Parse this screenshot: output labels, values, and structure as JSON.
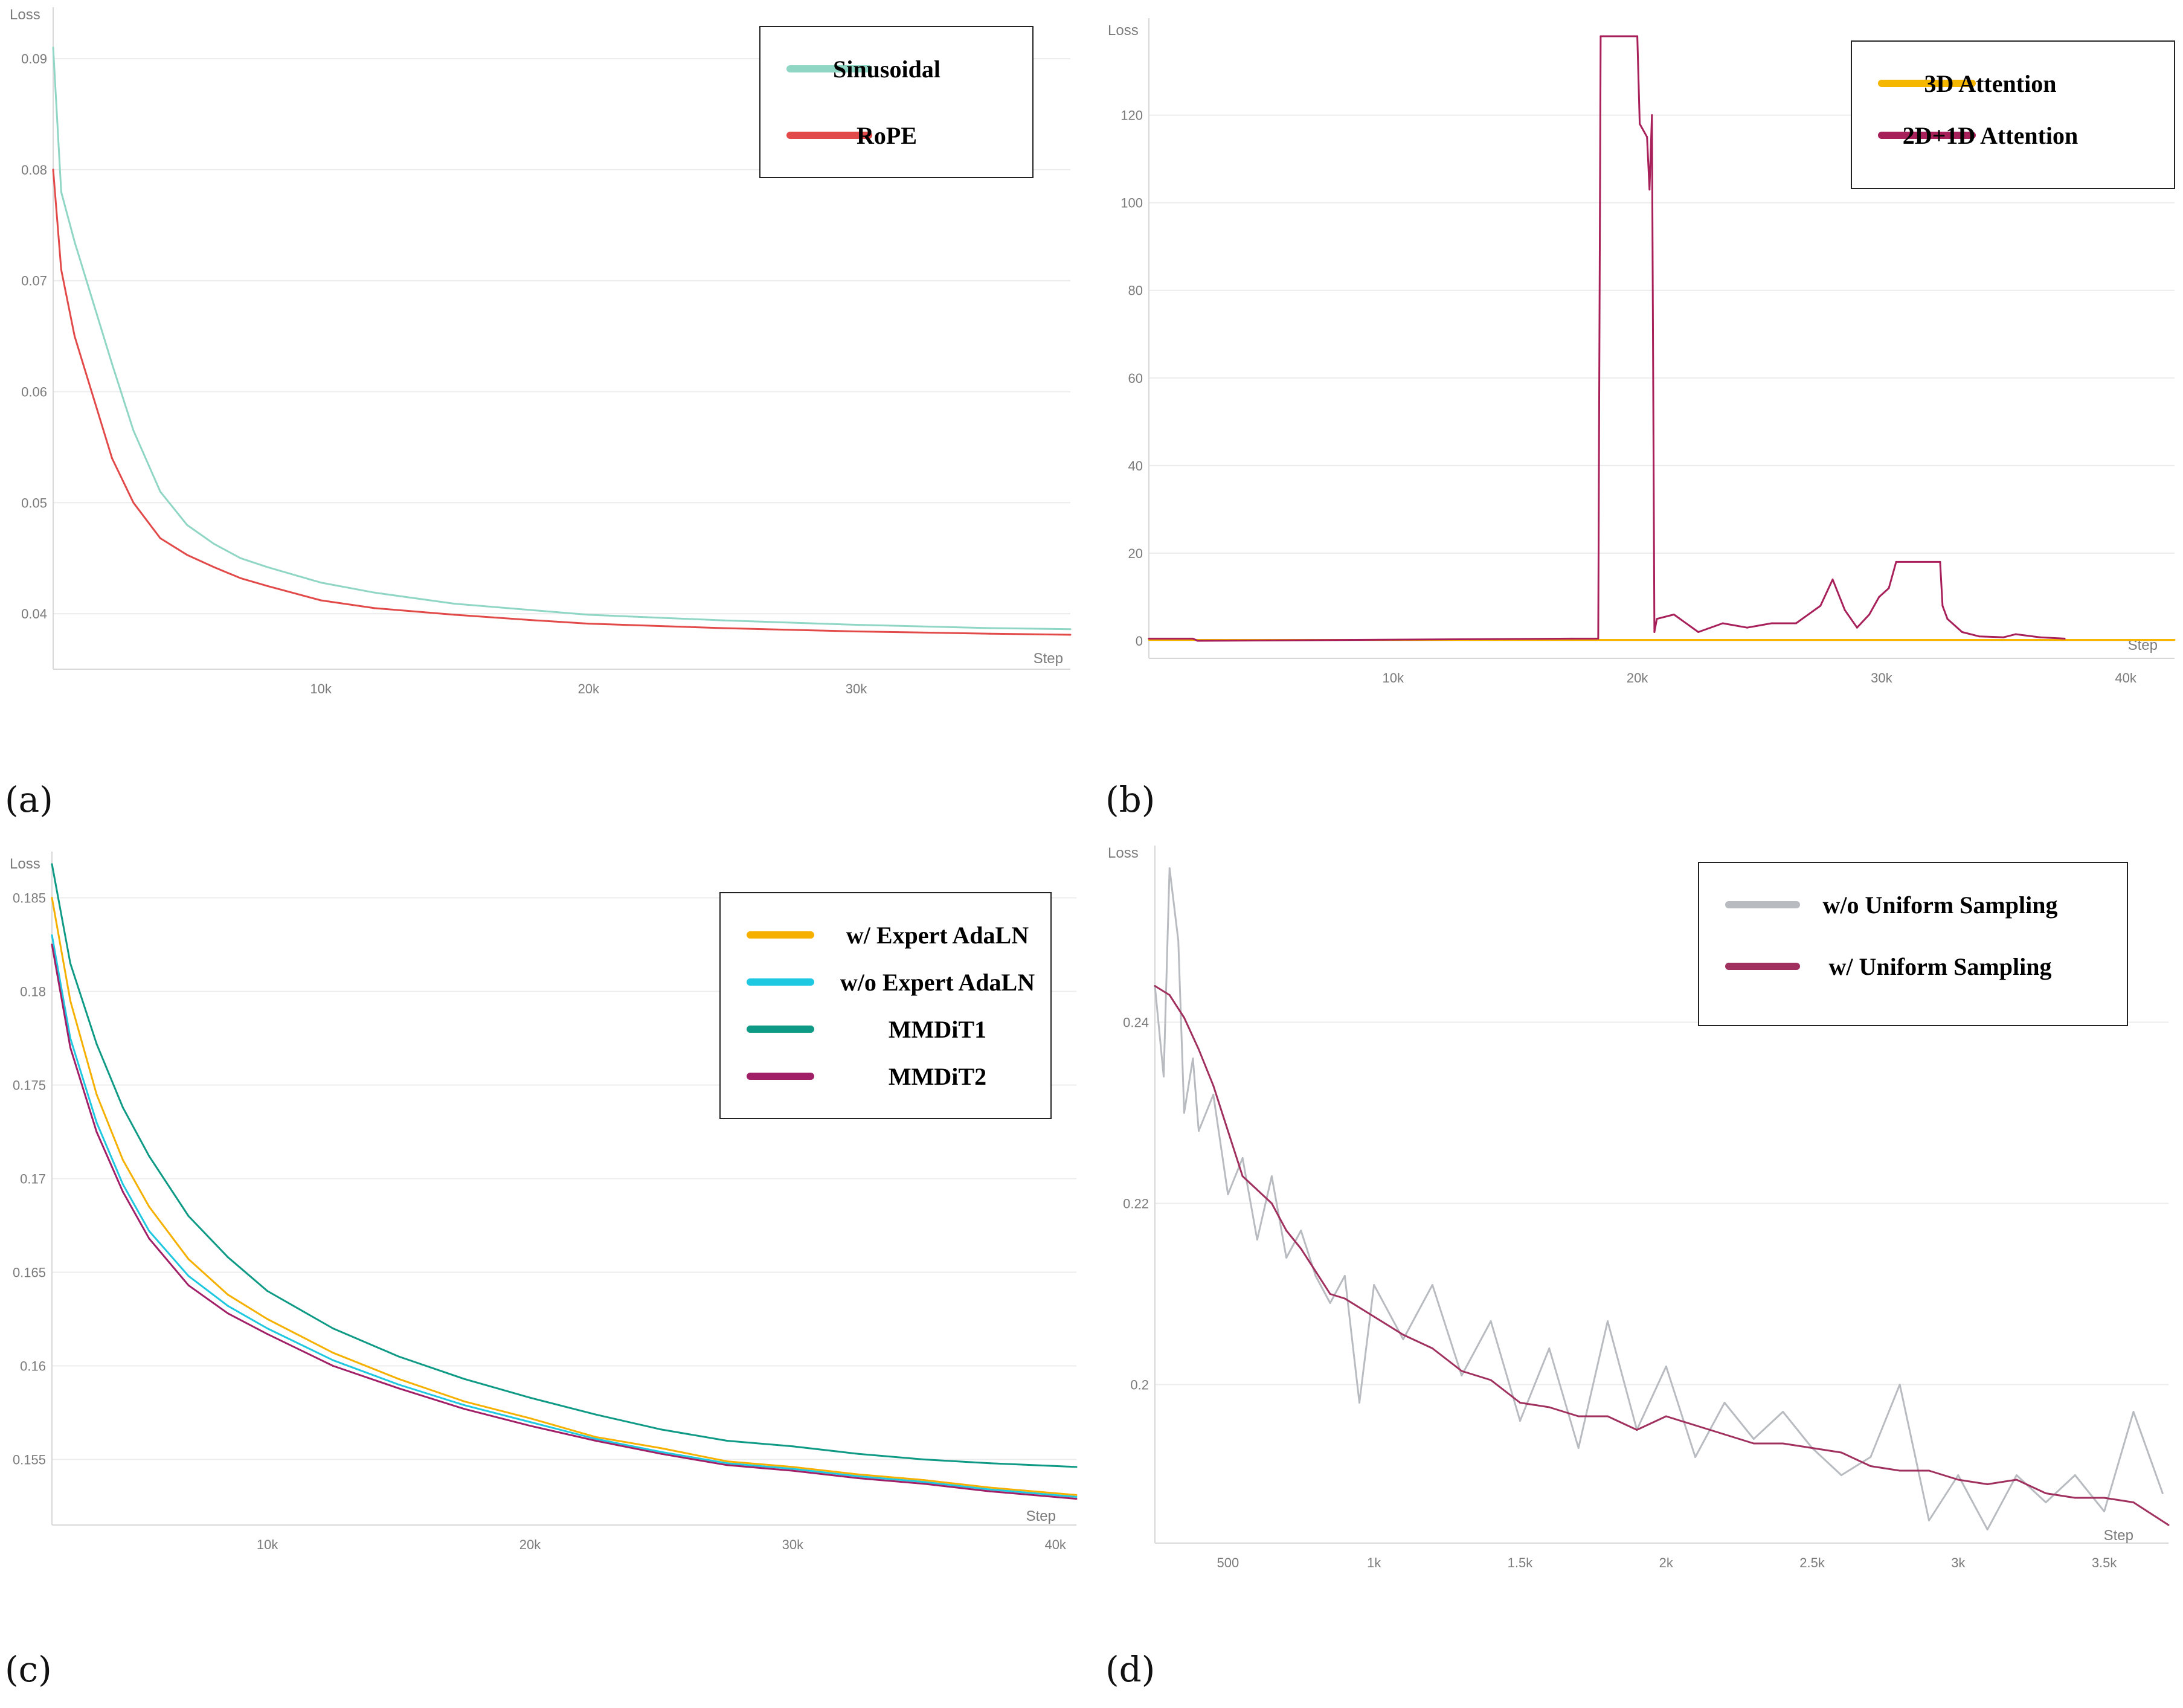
{
  "captions": {
    "a": "(a)",
    "b": "(b)",
    "c": "(c)",
    "d": "(d)"
  },
  "chart_data": [
    {
      "id": "a",
      "type": "line",
      "title": "",
      "ylabel": "Loss",
      "xlabel": "Step",
      "xlim": [
        0,
        38000
      ],
      "ylim": [
        0.035,
        0.093
      ],
      "xticks": [
        {
          "v": 10000,
          "label": "10k"
        },
        {
          "v": 20000,
          "label": "20k"
        },
        {
          "v": 30000,
          "label": "30k"
        }
      ],
      "yticks": [
        {
          "v": 0.04,
          "label": "0.04"
        },
        {
          "v": 0.05,
          "label": "0.05"
        },
        {
          "v": 0.06,
          "label": "0.06"
        },
        {
          "v": 0.07,
          "label": "0.07"
        },
        {
          "v": 0.08,
          "label": "0.08"
        },
        {
          "v": 0.09,
          "label": "0.09"
        }
      ],
      "grid": true,
      "legend": "top-right",
      "series": [
        {
          "name": "Sinusoidal",
          "color": "#8fd6c4",
          "x": [
            0,
            300,
            800,
            1500,
            2200,
            3000,
            4000,
            5000,
            6000,
            7000,
            8000,
            10000,
            12000,
            15000,
            18000,
            20000,
            25000,
            30000,
            35000,
            38000
          ],
          "y": [
            0.091,
            0.078,
            0.0735,
            0.068,
            0.0625,
            0.0565,
            0.051,
            0.048,
            0.0463,
            0.045,
            0.0442,
            0.0428,
            0.0419,
            0.0409,
            0.0403,
            0.0399,
            0.0394,
            0.039,
            0.0387,
            0.0386
          ]
        },
        {
          "name": "RoPE",
          "color": "#e24a4a",
          "x": [
            0,
            300,
            800,
            1500,
            2200,
            3000,
            4000,
            5000,
            6000,
            7000,
            8000,
            10000,
            12000,
            15000,
            18000,
            20000,
            25000,
            30000,
            35000,
            38000
          ],
          "y": [
            0.08,
            0.071,
            0.065,
            0.0595,
            0.054,
            0.05,
            0.0468,
            0.0453,
            0.0442,
            0.0432,
            0.0425,
            0.0412,
            0.0405,
            0.0399,
            0.0394,
            0.0391,
            0.0387,
            0.0384,
            0.0382,
            0.0381
          ]
        }
      ]
    },
    {
      "id": "b",
      "type": "line",
      "title": "",
      "ylabel": "Loss",
      "xlabel": "Step",
      "xlim": [
        0,
        42000
      ],
      "ylim": [
        -4,
        138
      ],
      "xticks": [
        {
          "v": 10000,
          "label": "10k"
        },
        {
          "v": 20000,
          "label": "20k"
        },
        {
          "v": 30000,
          "label": "30k"
        },
        {
          "v": 40000,
          "label": "40k"
        }
      ],
      "yticks": [
        {
          "v": 0,
          "label": "0"
        },
        {
          "v": 20,
          "label": "20"
        },
        {
          "v": 40,
          "label": "40"
        },
        {
          "v": 60,
          "label": "60"
        },
        {
          "v": 80,
          "label": "80"
        },
        {
          "v": 100,
          "label": "100"
        },
        {
          "v": 120,
          "label": "120"
        }
      ],
      "grid": true,
      "legend": "top-right",
      "series": [
        {
          "name": "3D Attention",
          "color": "#f5b700",
          "x": [
            0,
            10000,
            20000,
            30000,
            40000,
            42000
          ],
          "y": [
            0.2,
            0.2,
            0.2,
            0.2,
            0.2,
            0.2
          ]
        },
        {
          "name": "2D+1D Attention",
          "color": "#a8205a",
          "x": [
            0,
            1800,
            2000,
            17300,
            18400,
            18500,
            18700,
            20000,
            20100,
            20400,
            20500,
            20600,
            20700,
            20800,
            21500,
            22500,
            23500,
            24500,
            25500,
            26500,
            27500,
            28000,
            28500,
            29000,
            29500,
            29900,
            30300,
            30600,
            32400,
            32500,
            32700,
            33300,
            34000,
            35000,
            35500,
            36500,
            37500
          ],
          "y": [
            0.5,
            0.5,
            0,
            0.5,
            0.5,
            138,
            138,
            138,
            118,
            115,
            103,
            120,
            2,
            5,
            6,
            2,
            4,
            3,
            4,
            4,
            8,
            14,
            7,
            3,
            6,
            10,
            12,
            18,
            18,
            8,
            5,
            2,
            1,
            0.8,
            1.5,
            0.8,
            0.5
          ]
        }
      ]
    },
    {
      "id": "c",
      "type": "line",
      "title": "",
      "ylabel": "Loss",
      "xlabel": "Step",
      "xlim": [
        1800,
        40800
      ],
      "ylim": [
        0.1515,
        0.1865
      ],
      "xticks": [
        {
          "v": 10000,
          "label": "10k"
        },
        {
          "v": 20000,
          "label": "20k"
        },
        {
          "v": 30000,
          "label": "30k"
        },
        {
          "v": 40000,
          "label": "40k"
        }
      ],
      "yticks": [
        {
          "v": 0.155,
          "label": "0.155"
        },
        {
          "v": 0.16,
          "label": "0.16"
        },
        {
          "v": 0.165,
          "label": "0.165"
        },
        {
          "v": 0.17,
          "label": "0.17"
        },
        {
          "v": 0.175,
          "label": "0.175"
        },
        {
          "v": 0.18,
          "label": "0.18"
        },
        {
          "v": 0.185,
          "label": "0.185"
        }
      ],
      "grid": true,
      "legend": "top-right",
      "series": [
        {
          "name": "w/ Expert AdaLN",
          "color": "#f5b000",
          "x": [
            1800,
            2500,
            3500,
            4500,
            5500,
            7000,
            8500,
            10000,
            12500,
            15000,
            17500,
            20000,
            22500,
            25000,
            27500,
            30000,
            32500,
            35000,
            37500,
            40800
          ],
          "y": [
            0.185,
            0.1795,
            0.1745,
            0.171,
            0.1685,
            0.1657,
            0.1638,
            0.1625,
            0.1607,
            0.1593,
            0.1581,
            0.1572,
            0.1562,
            0.1556,
            0.1549,
            0.1546,
            0.1542,
            0.1539,
            0.1535,
            0.1531
          ]
        },
        {
          "name": "w/o Expert AdaLN",
          "color": "#1ec8e0",
          "x": [
            1800,
            2500,
            3500,
            4500,
            5500,
            7000,
            8500,
            10000,
            12500,
            15000,
            17500,
            20000,
            22500,
            25000,
            27500,
            30000,
            32500,
            35000,
            37500,
            40800
          ],
          "y": [
            0.183,
            0.1775,
            0.173,
            0.1697,
            0.1672,
            0.1648,
            0.1632,
            0.162,
            0.1603,
            0.159,
            0.1579,
            0.157,
            0.1561,
            0.1554,
            0.1548,
            0.1545,
            0.1541,
            0.1538,
            0.1534,
            0.153
          ]
        },
        {
          "name": "MMDiT1",
          "color": "#0e9a85",
          "x": [
            1800,
            2500,
            3500,
            4500,
            5500,
            7000,
            8500,
            10000,
            12500,
            15000,
            17500,
            20000,
            22500,
            25000,
            27500,
            30000,
            32500,
            35000,
            37500,
            40800
          ],
          "y": [
            0.1868,
            0.1815,
            0.1772,
            0.1738,
            0.1712,
            0.168,
            0.1658,
            0.164,
            0.162,
            0.1605,
            0.1593,
            0.1583,
            0.1574,
            0.1566,
            0.156,
            0.1557,
            0.1553,
            0.155,
            0.1548,
            0.1546
          ]
        },
        {
          "name": "MMDiT2",
          "color": "#a11f67",
          "x": [
            1800,
            2500,
            3500,
            4500,
            5500,
            7000,
            8500,
            10000,
            12500,
            15000,
            17500,
            20000,
            22500,
            25000,
            27500,
            30000,
            32500,
            35000,
            37500,
            40800
          ],
          "y": [
            0.1825,
            0.177,
            0.1725,
            0.1693,
            0.1668,
            0.1643,
            0.1628,
            0.1617,
            0.16,
            0.1588,
            0.1577,
            0.1568,
            0.156,
            0.1553,
            0.1547,
            0.1544,
            0.154,
            0.1537,
            0.1533,
            0.1529
          ]
        }
      ]
    },
    {
      "id": "d",
      "type": "line",
      "title": "",
      "ylabel": "Loss",
      "xlabel": "Step",
      "xlim": [
        250,
        3720
      ],
      "ylim": [
        0.1825,
        0.2575
      ],
      "xticks": [
        {
          "v": 500,
          "label": "500"
        },
        {
          "v": 1000,
          "label": "1k"
        },
        {
          "v": 1500,
          "label": "1.5k"
        },
        {
          "v": 2000,
          "label": "2k"
        },
        {
          "v": 2500,
          "label": "2.5k"
        },
        {
          "v": 3000,
          "label": "3k"
        },
        {
          "v": 3500,
          "label": "3.5k"
        }
      ],
      "yticks": [
        {
          "v": 0.2,
          "label": "0.2"
        },
        {
          "v": 0.22,
          "label": "0.22"
        },
        {
          "v": 0.24,
          "label": "0.24"
        }
      ],
      "grid": true,
      "legend": "top-right",
      "series": [
        {
          "name": "w/o Uniform Sampling",
          "color": "#b8bcc0",
          "x": [
            250,
            280,
            300,
            330,
            350,
            380,
            400,
            450,
            500,
            550,
            600,
            650,
            700,
            750,
            800,
            850,
            900,
            950,
            1000,
            1100,
            1200,
            1300,
            1400,
            1500,
            1600,
            1700,
            1800,
            1900,
            2000,
            2100,
            2200,
            2300,
            2400,
            2500,
            2600,
            2700,
            2800,
            2900,
            3000,
            3100,
            3200,
            3300,
            3400,
            3500,
            3600,
            3700
          ],
          "y": [
            0.244,
            0.234,
            0.257,
            0.249,
            0.23,
            0.236,
            0.228,
            0.232,
            0.221,
            0.225,
            0.216,
            0.223,
            0.214,
            0.217,
            0.212,
            0.209,
            0.212,
            0.198,
            0.211,
            0.205,
            0.211,
            0.201,
            0.207,
            0.196,
            0.204,
            0.193,
            0.207,
            0.195,
            0.202,
            0.192,
            0.198,
            0.194,
            0.197,
            0.193,
            0.19,
            0.192,
            0.2,
            0.185,
            0.19,
            0.184,
            0.19,
            0.187,
            0.19,
            0.186,
            0.197,
            0.188
          ]
        },
        {
          "name": "w/ Uniform Sampling",
          "color": "#a0305e",
          "x": [
            250,
            300,
            350,
            400,
            450,
            500,
            550,
            600,
            650,
            700,
            750,
            800,
            850,
            900,
            1000,
            1100,
            1200,
            1300,
            1400,
            1500,
            1600,
            1700,
            1800,
            1900,
            2000,
            2100,
            2200,
            2300,
            2400,
            2500,
            2600,
            2700,
            2800,
            2900,
            3000,
            3100,
            3200,
            3300,
            3400,
            3500,
            3600,
            3720
          ],
          "y": [
            0.244,
            0.243,
            0.2405,
            0.237,
            0.233,
            0.228,
            0.223,
            0.2215,
            0.22,
            0.217,
            0.215,
            0.2125,
            0.21,
            0.2095,
            0.2075,
            0.2055,
            0.204,
            0.2015,
            0.2005,
            0.198,
            0.1975,
            0.1965,
            0.1965,
            0.195,
            0.1965,
            0.1955,
            0.1945,
            0.1935,
            0.1935,
            0.193,
            0.1925,
            0.191,
            0.1905,
            0.1905,
            0.1895,
            0.189,
            0.1895,
            0.188,
            0.1875,
            0.1875,
            0.187,
            0.1845
          ]
        }
      ]
    }
  ]
}
